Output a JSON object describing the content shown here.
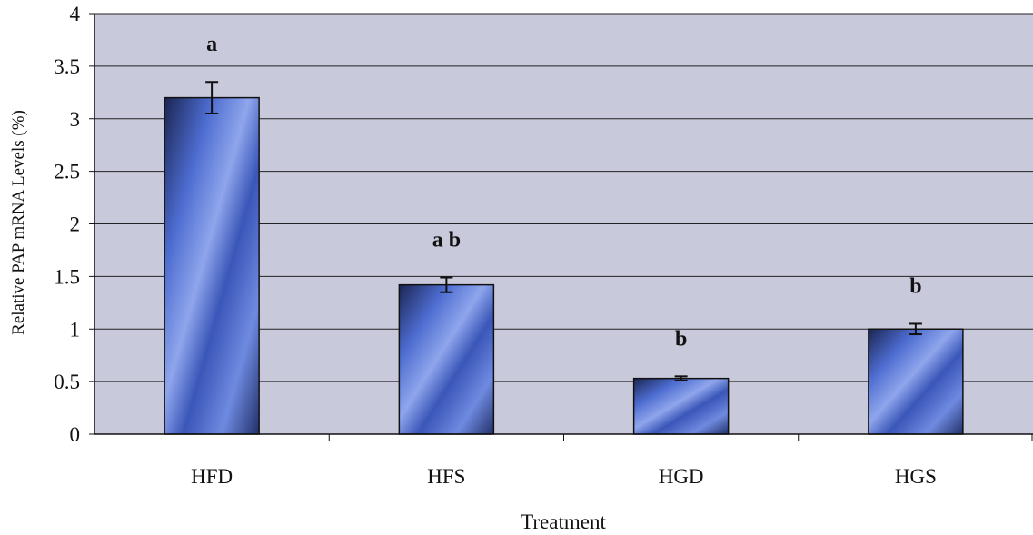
{
  "chart_data": {
    "type": "bar",
    "title": "",
    "xlabel": "Treatment",
    "ylabel": "Relative PAP mRNA Levels (%)",
    "ylim": [
      0,
      4
    ],
    "yticks": [
      "0",
      "0.5",
      "1",
      "1.5",
      "2",
      "2.5",
      "3",
      "3.5",
      "4"
    ],
    "grid": true,
    "legend": "none",
    "categories": [
      "HFD",
      "HFS",
      "HGD",
      "HGS"
    ],
    "values": [
      3.2,
      1.42,
      0.53,
      1.0
    ],
    "errors": [
      0.15,
      0.07,
      0.02,
      0.05
    ],
    "significance": [
      "a",
      "a b",
      "b",
      "b"
    ],
    "colors": {
      "plot_background": "#c9c9dc",
      "bar_fill": "#5a78d6",
      "bar_dark": "#1a2450",
      "gridline": "#222222"
    }
  }
}
